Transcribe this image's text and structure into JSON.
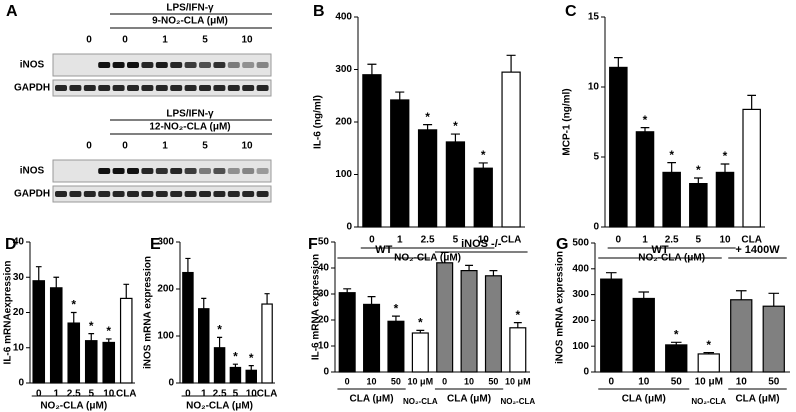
{
  "blot": {
    "panel": "A",
    "blocks": [
      {
        "treatment": "LPS/IFN-γ",
        "compound": "9-NO₂-CLA (μM)",
        "lanes": [
          "0",
          "0",
          "1",
          "5",
          "10"
        ],
        "rows": [
          "iNOS",
          "GAPDH"
        ]
      },
      {
        "treatment": "LPS/IFN-γ",
        "compound": "12-NO₂-CLA (μM)",
        "lanes": [
          "0",
          "0",
          "1",
          "5",
          "10"
        ],
        "rows": [
          "iNOS",
          "GAPDH"
        ]
      }
    ]
  },
  "chart_data": [
    {
      "type": "bar",
      "panel": "B",
      "ylabel": "IL-6 (ng/ml)",
      "categories": [
        "0",
        "1",
        "2.5",
        "5",
        "10",
        "CLA"
      ],
      "values": [
        290,
        242,
        185,
        162,
        112,
        295
      ],
      "errors": [
        20,
        15,
        10,
        15,
        10,
        32
      ],
      "colors": [
        "#000000",
        "#000000",
        "#000000",
        "#000000",
        "#000000",
        "#ffffff"
      ],
      "value_annotations": [
        null,
        null,
        "*",
        "*",
        "*",
        null
      ],
      "groups": [
        "NO₂-CLA (μM)"
      ],
      "ylim": [
        0,
        400
      ],
      "yticks": [
        0,
        100,
        200,
        300,
        400
      ]
    },
    {
      "type": "bar",
      "panel": "C",
      "ylabel": "MCP-1 (ng/ml)",
      "categories": [
        "0",
        "1",
        "2.5",
        "5",
        "10",
        "CLA"
      ],
      "values": [
        11.4,
        6.8,
        3.9,
        3.1,
        3.9,
        8.4
      ],
      "errors": [
        0.7,
        0.3,
        0.7,
        0.4,
        0.6,
        1.0
      ],
      "colors": [
        "#000000",
        "#000000",
        "#000000",
        "#000000",
        "#000000",
        "#ffffff"
      ],
      "value_annotations": [
        null,
        "*",
        "*",
        "*",
        "*",
        null
      ],
      "groups": [
        "NO₂-CLA (μM)"
      ],
      "ylim": [
        0,
        15
      ],
      "yticks": [
        0,
        5,
        10,
        15
      ]
    },
    {
      "type": "bar",
      "panel": "D",
      "ylabel": "IL-6 mRNAexpression",
      "categories": [
        "0",
        "1",
        "2.5",
        "5",
        "10",
        "CLA"
      ],
      "values": [
        29,
        27,
        17,
        12,
        11.5,
        24
      ],
      "errors": [
        4,
        3,
        3,
        2,
        1,
        4
      ],
      "colors": [
        "#000000",
        "#000000",
        "#000000",
        "#000000",
        "#000000",
        "#ffffff"
      ],
      "value_annotations": [
        null,
        null,
        "*",
        "*",
        "*",
        null
      ],
      "groups": [
        "NO₂-CLA (μM)"
      ],
      "ylim": [
        0,
        40
      ],
      "yticks": [
        0,
        10,
        20,
        30,
        40
      ]
    },
    {
      "type": "bar",
      "panel": "E",
      "ylabel": "iNOS mRNA expression",
      "categories": [
        "0",
        "1",
        "2.5",
        "5",
        "10",
        "CLA"
      ],
      "values": [
        235,
        158,
        75,
        33,
        27,
        168
      ],
      "errors": [
        30,
        22,
        22,
        7,
        10,
        22
      ],
      "colors": [
        "#000000",
        "#000000",
        "#000000",
        "#000000",
        "#000000",
        "#ffffff"
      ],
      "value_annotations": [
        null,
        null,
        "*",
        "*",
        "*",
        null
      ],
      "groups": [
        "NO₂-CLA (μM)"
      ],
      "ylim": [
        0,
        300
      ],
      "yticks": [
        0,
        100,
        200,
        300
      ]
    },
    {
      "type": "bar",
      "panel": "F",
      "ylabel": "IL-6 mRNA expression",
      "categories": [
        "0",
        "10",
        "50",
        "10 μM",
        "0",
        "10",
        "50",
        "10 μM"
      ],
      "values": [
        30.5,
        26,
        19.5,
        15,
        42,
        39,
        37,
        17
      ],
      "errors": [
        1.5,
        3,
        2,
        1,
        4,
        2,
        2,
        2
      ],
      "colors": [
        "#000000",
        "#000000",
        "#000000",
        "#ffffff",
        "#808080",
        "#808080",
        "#808080",
        "#ffffff"
      ],
      "value_annotations": [
        null,
        null,
        "*",
        "*",
        null,
        null,
        null,
        "*"
      ],
      "top_groups": [
        "WT",
        "iNOS -/-"
      ],
      "groups": [
        "CLA (μM)",
        "NO₂-CLA",
        "CLA (μM)",
        "NO₂-CLA"
      ],
      "ylim": [
        0,
        50
      ],
      "yticks": [
        0,
        10,
        20,
        30,
        40,
        50
      ]
    },
    {
      "type": "bar",
      "panel": "G",
      "ylabel": "iNOS mRNA expression",
      "categories": [
        "0",
        "10",
        "50",
        "10 μM",
        "10",
        "50"
      ],
      "values": [
        360,
        285,
        105,
        70,
        280,
        255
      ],
      "errors": [
        25,
        25,
        10,
        5,
        35,
        50
      ],
      "colors": [
        "#000000",
        "#000000",
        "#000000",
        "#ffffff",
        "#808080",
        "#808080"
      ],
      "value_annotations": [
        null,
        null,
        "*",
        "*",
        null,
        null
      ],
      "top_groups": [
        "WT",
        "+ 1400W"
      ],
      "groups": [
        "CLA (μM)",
        "NO₂-CLA",
        "CLA (μM)"
      ],
      "ylim": [
        0,
        500
      ],
      "yticks": [
        0,
        100,
        200,
        300,
        400,
        500
      ]
    }
  ]
}
